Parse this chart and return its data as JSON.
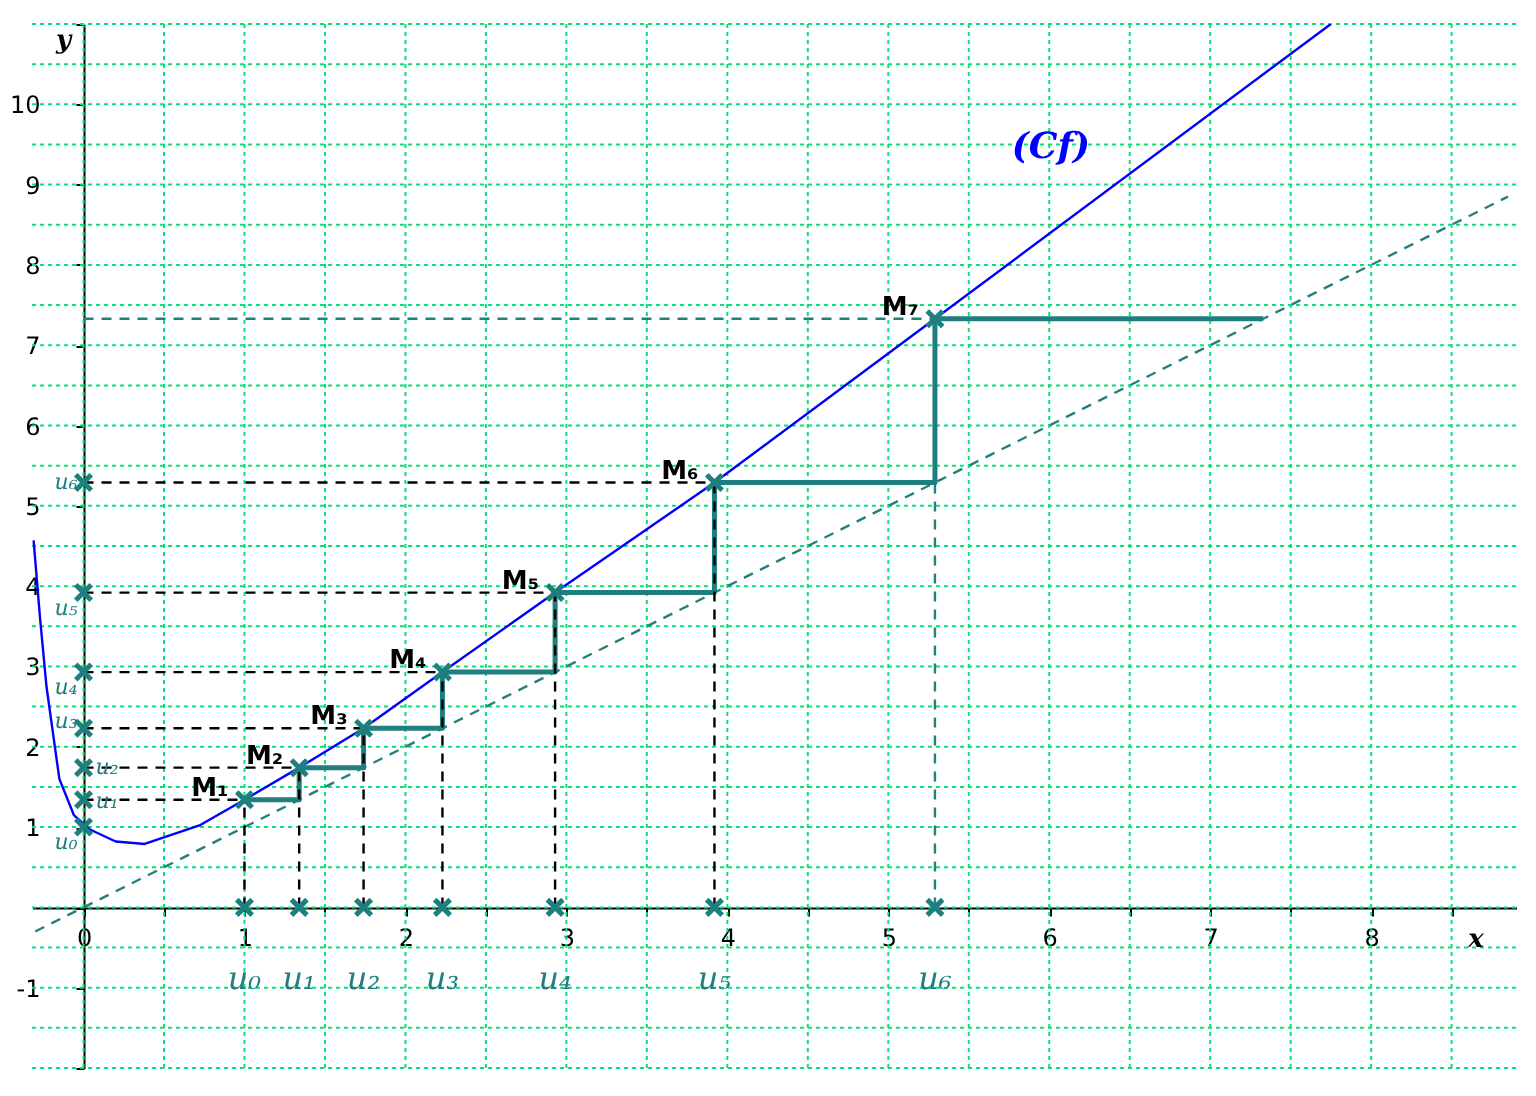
{
  "chart_data": {
    "type": "line",
    "xlabel": "x",
    "ylabel": "y",
    "xlim": [
      -0.32,
      8.9
    ],
    "ylim": [
      -2,
      11
    ],
    "xticks": [
      0,
      {
        "value": 0.5,
        "label": null
      },
      1,
      {
        "value": 1.5,
        "label": null
      },
      2,
      {
        "value": 2.5,
        "label": null
      },
      3,
      {
        "value": 3.5,
        "label": null
      },
      4,
      {
        "value": 4.5,
        "label": null
      },
      5,
      {
        "value": 5.5,
        "label": null
      },
      6,
      {
        "value": 6.5,
        "label": null
      },
      7,
      {
        "value": 7.5,
        "label": null
      },
      8,
      {
        "value": 8.5,
        "label": null
      }
    ],
    "yticks": [
      {
        "value": -2,
        "label": null
      },
      {
        "value": -1.5,
        "label": null
      },
      -1,
      {
        "value": -0.5,
        "label": null
      },
      {
        "value": 0,
        "label": null
      },
      {
        "value": 0.5,
        "label": null
      },
      1,
      {
        "value": 1.5,
        "label": null
      },
      2,
      {
        "value": 2.5,
        "label": null
      },
      3,
      {
        "value": 3.5,
        "label": null
      },
      4,
      {
        "value": 4.5,
        "label": null
      },
      5,
      {
        "value": 5.5,
        "label": null
      },
      6,
      {
        "value": 6.5,
        "label": null
      },
      7,
      {
        "value": 7.5,
        "label": null
      },
      8,
      {
        "value": 8.5,
        "label": null
      },
      9,
      {
        "value": 9.5,
        "label": null
      },
      10,
      {
        "value": 10.5,
        "label": null
      },
      {
        "value": 11,
        "label": null
      }
    ],
    "grid": true,
    "series": [
      {
        "name": "(Cf)",
        "color": "#0000ff",
        "x": [
          -0.31,
          -0.27,
          -0.23,
          -0.15,
          -0.06,
          0.04,
          0.2,
          0.38,
          0.72,
          1,
          1.34,
          1.74,
          2.23,
          2.93,
          3.92,
          5.29,
          7.75
        ],
        "values": [
          4.57,
          3.6,
          2.75,
          1.6,
          1.15,
          0.97,
          0.82,
          0.79,
          1.02,
          1.34,
          1.74,
          2.23,
          2.93,
          3.92,
          5.29,
          7.33,
          11
        ]
      },
      {
        "line_style": "dashed",
        "color": "#267f7f",
        "x": [
          -0.3,
          8.85
        ],
        "values": [
          -0.3,
          8.85
        ]
      },
      {
        "color": "#1f7f7f",
        "x": [
          1,
          1.34,
          1.34,
          1.74,
          1.74,
          2.23,
          2.23,
          2.93,
          2.93,
          3.92,
          3.92,
          5.29,
          5.29,
          7.33
        ],
        "values": [
          1.34,
          1.34,
          1.74,
          1.74,
          2.23,
          2.23,
          2.93,
          2.93,
          3.92,
          3.92,
          5.29,
          5.29,
          7.33,
          7.33
        ]
      },
      {
        "line_style": "dashed",
        "color": "#000000",
        "x": [
          1,
          1,
          null,
          1.34,
          1.34,
          null,
          1.74,
          1.74,
          null,
          2.23,
          2.23,
          null,
          2.93,
          2.93,
          null,
          3.92,
          3.92,
          null,
          0,
          1,
          null,
          0,
          1.34,
          null,
          0,
          1.74,
          null,
          0,
          2.23,
          null,
          0,
          2.93,
          null,
          0,
          3.92
        ],
        "values": [
          0,
          1.34,
          null,
          0,
          1.74,
          null,
          0,
          2.23,
          null,
          0,
          2.93,
          null,
          0,
          3.92,
          null,
          0,
          5.29,
          null,
          1.34,
          1.34,
          null,
          1.74,
          1.74,
          null,
          2.23,
          2.23,
          null,
          2.93,
          2.93,
          null,
          3.92,
          3.92,
          null,
          5.29,
          5.29
        ]
      },
      {
        "line_style": "dashed",
        "color": "#267f7f",
        "x": [
          0,
          5.29,
          null,
          5.29,
          5.29
        ],
        "values": [
          7.33,
          7.33,
          null,
          0,
          5.29
        ]
      },
      {
        "type": "scatter",
        "marker": "cross",
        "color": "#1f7f7f",
        "x": [
          1,
          1.34,
          1.74,
          2.23,
          2.93,
          3.92,
          5.29,
          0,
          0,
          0,
          0,
          0,
          0,
          0,
          1,
          1.34,
          1.74,
          2.23,
          2.93,
          3.92,
          5.29
        ],
        "values": [
          0,
          0,
          0,
          0,
          0,
          0,
          0,
          1,
          1.34,
          1.74,
          2.23,
          2.93,
          3.92,
          5.29,
          1.34,
          1.74,
          2.23,
          2.93,
          3.92,
          5.29,
          7.33
        ]
      }
    ],
    "annotations": [
      {
        "text": "M₁",
        "x": 1,
        "y": 1.34
      },
      {
        "text": "M₂",
        "x": 1.34,
        "y": 1.74
      },
      {
        "text": "M₃",
        "x": 1.74,
        "y": 2.23
      },
      {
        "text": "M₄",
        "x": 2.23,
        "y": 2.93
      },
      {
        "text": "M₅",
        "x": 2.93,
        "y": 3.92
      },
      {
        "text": "M₆",
        "x": 3.92,
        "y": 5.29
      },
      {
        "text": "M₇",
        "x": 5.29,
        "y": 7.33
      },
      {
        "text": "u₀",
        "x": 1,
        "y": 0
      },
      {
        "text": "u₁",
        "x": 1.34,
        "y": 0
      },
      {
        "text": "u₂",
        "x": 1.74,
        "y": 0
      },
      {
        "text": "u₃",
        "x": 2.23,
        "y": 0
      },
      {
        "text": "u₄",
        "x": 2.93,
        "y": 0
      },
      {
        "text": "u₅",
        "x": 3.92,
        "y": 0
      },
      {
        "text": "u₆",
        "x": 5.29,
        "y": 0
      },
      {
        "text": "u₀",
        "x": 0,
        "y": 1
      },
      {
        "text": "u₁",
        "x": 0,
        "y": 1.34
      },
      {
        "text": "u₂",
        "x": 0,
        "y": 1.74
      },
      {
        "text": "u₃",
        "x": 0,
        "y": 2.23
      },
      {
        "text": "u₄",
        "x": 0,
        "y": 2.93
      },
      {
        "text": "u₅",
        "x": 0,
        "y": 3.92
      },
      {
        "text": "u₆",
        "x": 0,
        "y": 5.29
      }
    ]
  }
}
